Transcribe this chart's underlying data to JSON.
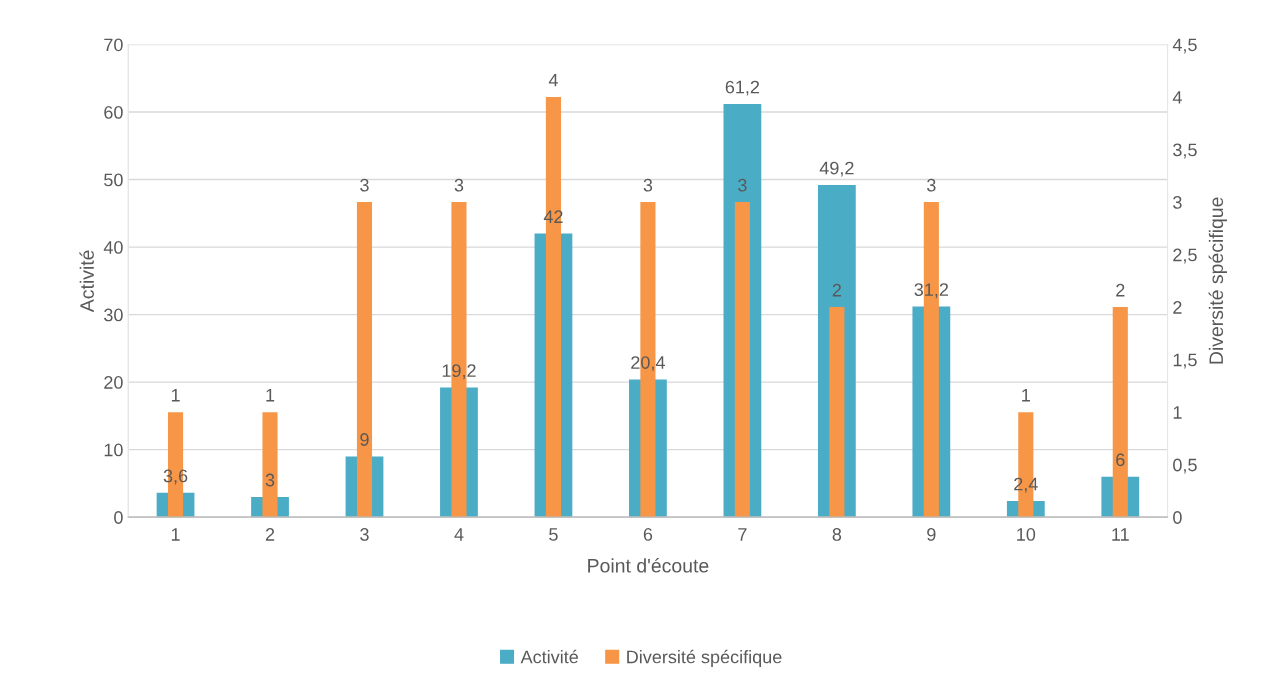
{
  "chart_data": {
    "type": "bar",
    "xlabel": "Point d'écoute",
    "ylabel": "Activité",
    "y2label": "Diversité spécifique",
    "categories": [
      "1",
      "2",
      "3",
      "4",
      "5",
      "6",
      "7",
      "8",
      "9",
      "10",
      "11"
    ],
    "series": [
      {
        "name": "Activité",
        "color": "#4bacc6",
        "values": [
          3.6,
          3,
          9,
          19.2,
          42,
          20.4,
          61.2,
          49.2,
          31.2,
          2.4,
          6
        ],
        "value_labels": [
          "3,6",
          "3",
          "9",
          "19,2",
          "42",
          "20,4",
          "61,2",
          "49,2",
          "31,2",
          "2,4",
          "6"
        ]
      },
      {
        "name": "Diversité spécifique",
        "color": "#f79646",
        "axis": "y2",
        "values": [
          1,
          1,
          3,
          3,
          4,
          3,
          3,
          2,
          3,
          1,
          2
        ],
        "value_labels": [
          "1",
          "1",
          "3",
          "3",
          "4",
          "3",
          "3",
          "2",
          "3",
          "1",
          "2"
        ]
      }
    ],
    "ylim": [
      0,
      70
    ],
    "yticks": [
      0,
      10,
      20,
      30,
      40,
      50,
      60,
      70
    ],
    "y2lim": [
      0,
      4.5
    ],
    "y2ticks": [
      0,
      {
        "value": 0.5,
        "label": "0,5"
      },
      1,
      {
        "value": 1.5,
        "label": "1,5"
      },
      2,
      {
        "value": 2.5,
        "label": "2,5"
      },
      3,
      {
        "value": 3.5,
        "label": "3,5"
      },
      4,
      {
        "value": 4.5,
        "label": "4,5"
      }
    ],
    "grid": "y",
    "legend": "bottom"
  }
}
